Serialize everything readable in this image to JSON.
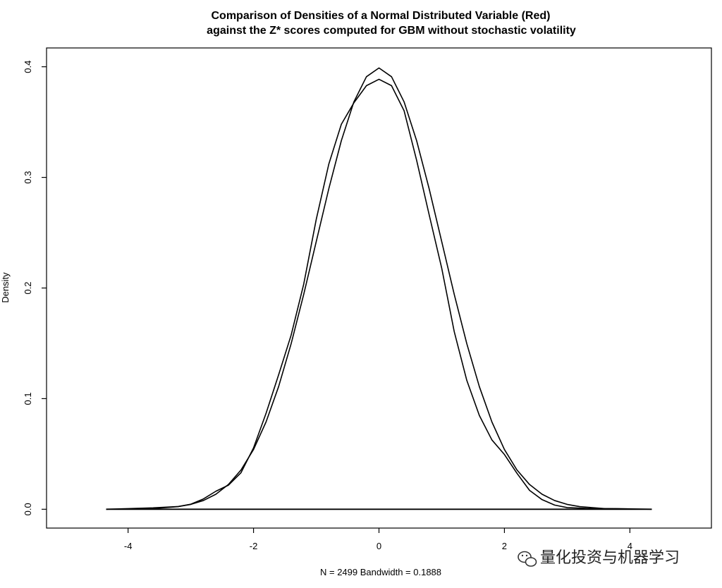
{
  "chart_data": {
    "type": "line",
    "title": "Comparison of Densities of a Normal Distributed Variable (Red)",
    "subtitle": "against the Z* scores computed for GBM without stochastic volatility",
    "xlabel": "N = 2499   Bandwidth = 0.1888",
    "ylabel": "Density",
    "xlim": [
      -5.3,
      5.3
    ],
    "ylim": [
      -0.017,
      0.417
    ],
    "x_ticks": [
      "-4",
      "-2",
      "0",
      "2",
      "4"
    ],
    "y_ticks": [
      "0.0",
      "0.1",
      "0.2",
      "0.3",
      "0.4"
    ],
    "grid": false,
    "series": [
      {
        "values_x": [
          -4.0,
          -3.6,
          -3.2,
          -3.0,
          -2.8,
          -2.6,
          -2.4,
          -2.2,
          -2.0,
          -1.8,
          -1.6,
          -1.4,
          -1.2,
          -1.0,
          -0.8,
          -0.6,
          -0.4,
          -0.2,
          0.0,
          0.2,
          0.4,
          0.6,
          0.8,
          1.0,
          1.2,
          1.4,
          1.6,
          1.8,
          2.0,
          2.2,
          2.4,
          2.6,
          2.8,
          3.0,
          3.2,
          3.6,
          4.0
        ],
        "values_y": [
          0.0001,
          0.0006,
          0.0024,
          0.0044,
          0.0079,
          0.0136,
          0.0224,
          0.0355,
          0.054,
          0.079,
          0.1109,
          0.1497,
          0.1942,
          0.242,
          0.2897,
          0.3332,
          0.3683,
          0.391,
          0.3989,
          0.391,
          0.3683,
          0.3332,
          0.2897,
          0.242,
          0.1942,
          0.1497,
          0.1109,
          0.079,
          0.054,
          0.0355,
          0.0224,
          0.0136,
          0.0079,
          0.0044,
          0.0024,
          0.0006,
          0.0001
        ]
      },
      {
        "values_x": [
          -4.35,
          -4.0,
          -3.6,
          -3.2,
          -3.0,
          -2.8,
          -2.6,
          -2.4,
          -2.2,
          -2.0,
          -1.8,
          -1.6,
          -1.4,
          -1.2,
          -1.0,
          -0.8,
          -0.6,
          -0.4,
          -0.2,
          0.0,
          0.2,
          0.4,
          0.6,
          0.8,
          1.0,
          1.2,
          1.4,
          1.6,
          1.8,
          2.0,
          2.2,
          2.4,
          2.6,
          2.8,
          3.0,
          3.4,
          3.8,
          4.35
        ],
        "values_y": [
          0.0,
          0.0006,
          0.0013,
          0.0025,
          0.0046,
          0.0093,
          0.0163,
          0.0218,
          0.033,
          0.0555,
          0.0868,
          0.1215,
          0.1575,
          0.2035,
          0.2621,
          0.312,
          0.348,
          0.3674,
          0.3829,
          0.3887,
          0.3829,
          0.3603,
          0.3155,
          0.2662,
          0.218,
          0.1605,
          0.1165,
          0.0848,
          0.0627,
          0.0495,
          0.0325,
          0.0171,
          0.0087,
          0.0038,
          0.0015,
          0.0006,
          0.0006,
          0.0
        ]
      }
    ],
    "baseline_y": 0.0
  },
  "watermark": {
    "text": "量化投资与机器学习"
  }
}
